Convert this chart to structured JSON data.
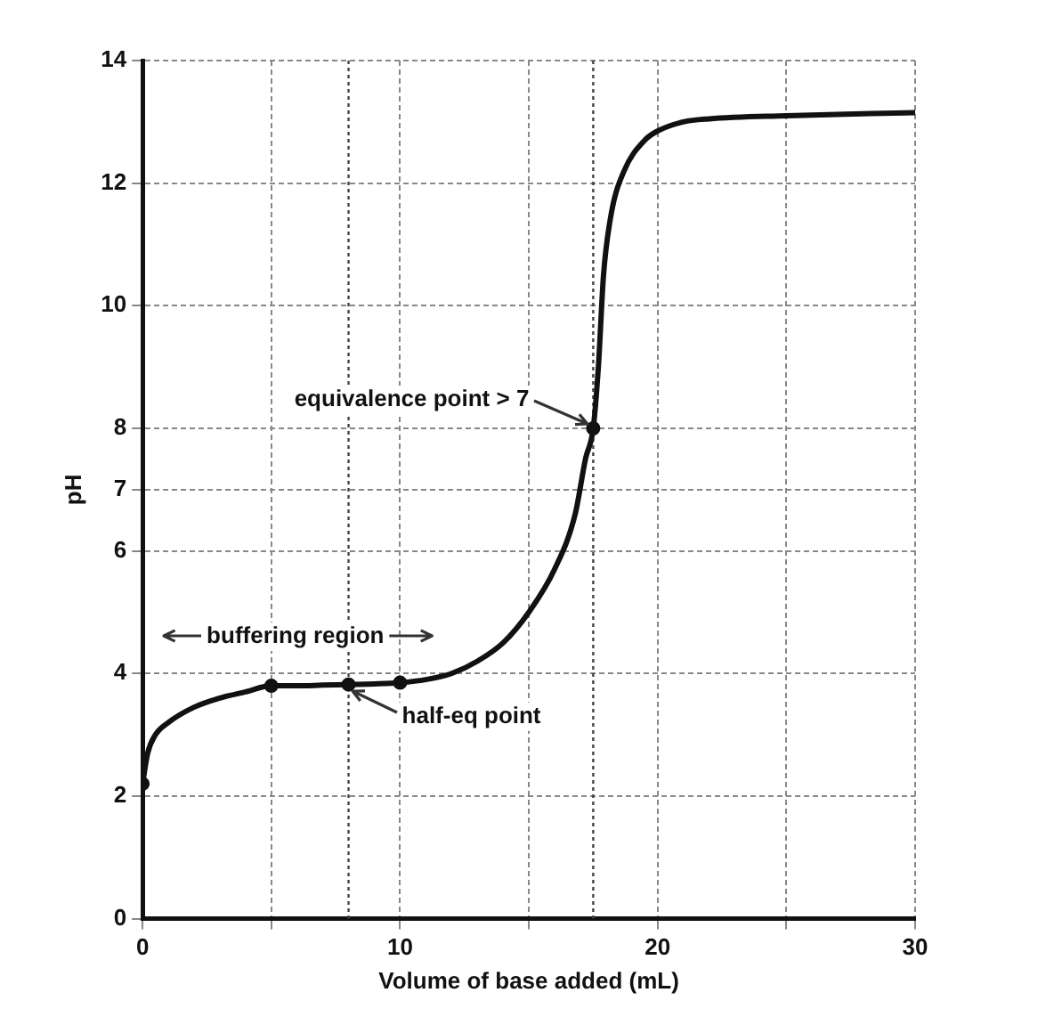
{
  "chart_data": {
    "type": "line",
    "xlabel": "Volume of base added (mL)",
    "ylabel": "pH",
    "series": [
      {
        "type": "line",
        "color": "#111111",
        "marker": "none",
        "x": [
          0,
          0.2,
          0.5,
          1,
          2,
          3,
          4,
          5,
          6,
          7,
          8,
          9,
          10,
          11,
          12,
          13,
          14,
          15,
          16,
          16.8,
          17.2,
          17.5,
          17.7,
          17.9,
          18.2,
          18.7,
          19.5,
          20,
          21,
          22,
          25,
          30
        ],
        "values": [
          2.2,
          2.7,
          3.0,
          3.2,
          3.45,
          3.6,
          3.7,
          3.8,
          3.8,
          3.81,
          3.82,
          3.83,
          3.85,
          3.9,
          4.0,
          4.2,
          4.5,
          5.0,
          5.7,
          6.6,
          7.5,
          8.0,
          9.0,
          10.5,
          11.5,
          12.2,
          12.7,
          12.85,
          13.0,
          13.05,
          13.1,
          13.15
        ]
      },
      {
        "type": "scatter",
        "color": "#111111",
        "marker": "circle",
        "x": [
          0,
          5,
          8,
          10,
          17.5
        ],
        "values": [
          2.2,
          3.8,
          3.82,
          3.85,
          8.0
        ]
      }
    ],
    "xlim": [
      0,
      30
    ],
    "xticks": [
      0,
      {
        "value": 5,
        "label": null
      },
      10,
      {
        "value": 15,
        "label": null
      },
      20,
      {
        "value": 25,
        "label": null
      },
      30
    ],
    "ylim": [
      0,
      14
    ],
    "yticks": [
      0,
      2,
      4,
      6,
      7,
      8,
      10,
      12,
      14
    ],
    "grid": true,
    "legend": false,
    "ref_lines": [
      {
        "axis": "x",
        "value": 8,
        "line_style": "dotted",
        "color": "#444444"
      },
      {
        "axis": "x",
        "value": 17.5,
        "line_style": "dotted",
        "color": "#444444"
      }
    ],
    "annotations": [
      {
        "text": "equivalence point > 7",
        "x": 17.5,
        "y": 8.0
      },
      {
        "text": "half-eq point",
        "x": 8,
        "y": 3.82
      },
      "buffering region"
    ]
  }
}
